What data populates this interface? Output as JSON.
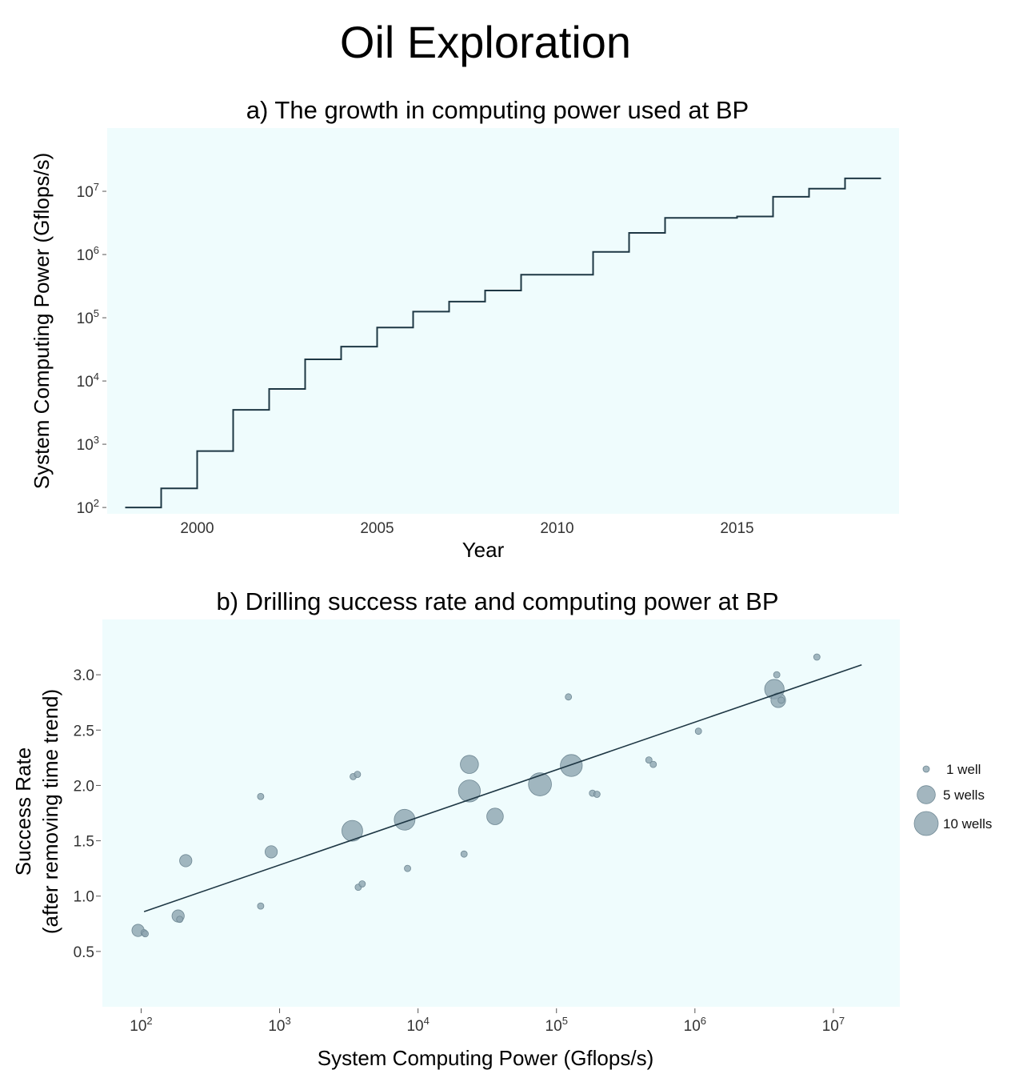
{
  "figure": {
    "title": "Oil Exploration",
    "colors": {
      "panel_bg": "#effcfd",
      "line": "#1e3744",
      "point": "#8fa6b1",
      "point_edge": "#6f8894",
      "text": "#111111"
    }
  },
  "chart_data": [
    {
      "type": "line",
      "step": true,
      "title": "a) The growth in computing power used at BP",
      "xlabel": "Year",
      "ylabel": "System Computing Power (Gflops/s)",
      "y_scale": "log10",
      "xlim": [
        1997.5,
        2019.5
      ],
      "ylim_log10": [
        1.9,
        8.0
      ],
      "xticks": [
        2000,
        2005,
        2010,
        2015
      ],
      "yticks_exp": [
        2,
        3,
        4,
        5,
        6,
        7
      ],
      "ytick_base": "10",
      "x": [
        1998,
        1999,
        2000,
        2001,
        2002,
        2003,
        2004,
        2005,
        2006,
        2007,
        2008,
        2009,
        2010,
        2011,
        2012,
        2013,
        2014,
        2015,
        2016,
        2017,
        2018,
        2019
      ],
      "y": [
        100,
        200,
        780,
        3500,
        7500,
        22000,
        35000,
        70000,
        125000,
        180000,
        270000,
        480000,
        480000,
        1100000,
        2200000,
        3800000,
        3800000,
        4000000,
        8200000,
        11000000,
        16000000,
        16000000
      ]
    },
    {
      "type": "scatter",
      "title": "b) Drilling success rate and computing power at BP",
      "xlabel": "System Computing Power (Gflops/s)",
      "ylabel": "Success Rate",
      "ylabel_sub": "(after removing time trend)",
      "x_scale": "log10",
      "xlim_log10": [
        1.72,
        7.48
      ],
      "ylim": [
        0.0,
        3.5
      ],
      "xticks_exp": [
        2,
        3,
        4,
        5,
        6,
        7
      ],
      "xtick_base": "10",
      "yticks": [
        0.5,
        1.0,
        1.5,
        2.0,
        2.5,
        3.0
      ],
      "points": [
        {
          "x": 95,
          "y": 0.69,
          "wells": 2
        },
        {
          "x": 105,
          "y": 0.67,
          "wells": 1
        },
        {
          "x": 107,
          "y": 0.66,
          "wells": 1
        },
        {
          "x": 185,
          "y": 0.82,
          "wells": 2
        },
        {
          "x": 190,
          "y": 0.79,
          "wells": 1
        },
        {
          "x": 210,
          "y": 1.32,
          "wells": 2
        },
        {
          "x": 730,
          "y": 1.9,
          "wells": 1
        },
        {
          "x": 730,
          "y": 0.91,
          "wells": 1
        },
        {
          "x": 870,
          "y": 1.4,
          "wells": 2
        },
        {
          "x": 3350,
          "y": 1.59,
          "wells": 7
        },
        {
          "x": 3400,
          "y": 2.08,
          "wells": 1
        },
        {
          "x": 3650,
          "y": 2.1,
          "wells": 1
        },
        {
          "x": 3700,
          "y": 1.08,
          "wells": 1
        },
        {
          "x": 3950,
          "y": 1.11,
          "wells": 1
        },
        {
          "x": 8000,
          "y": 1.69,
          "wells": 7
        },
        {
          "x": 8400,
          "y": 1.25,
          "wells": 1
        },
        {
          "x": 21500,
          "y": 1.38,
          "wells": 1
        },
        {
          "x": 23500,
          "y": 2.19,
          "wells": 5
        },
        {
          "x": 23500,
          "y": 1.95,
          "wells": 8
        },
        {
          "x": 36000,
          "y": 1.72,
          "wells": 4
        },
        {
          "x": 76000,
          "y": 2.01,
          "wells": 9
        },
        {
          "x": 122000,
          "y": 2.8,
          "wells": 1
        },
        {
          "x": 128000,
          "y": 2.18,
          "wells": 8
        },
        {
          "x": 182000,
          "y": 1.93,
          "wells": 1
        },
        {
          "x": 196000,
          "y": 1.92,
          "wells": 1
        },
        {
          "x": 465000,
          "y": 2.23,
          "wells": 1
        },
        {
          "x": 500000,
          "y": 2.19,
          "wells": 1
        },
        {
          "x": 1060000,
          "y": 2.49,
          "wells": 1
        },
        {
          "x": 3750000,
          "y": 2.87,
          "wells": 6
        },
        {
          "x": 3900000,
          "y": 3.0,
          "wells": 1
        },
        {
          "x": 4000000,
          "y": 2.77,
          "wells": 3
        },
        {
          "x": 4200000,
          "y": 2.77,
          "wells": 1
        },
        {
          "x": 7600000,
          "y": 3.16,
          "wells": 1
        }
      ],
      "fit_line": {
        "x": [
          105,
          16000000
        ],
        "y": [
          0.86,
          3.09
        ]
      },
      "legend": {
        "position": "right",
        "entries": [
          {
            "label": "1 well",
            "wells": 1
          },
          {
            "label": "5 wells",
            "wells": 5
          },
          {
            "label": "10 wells",
            "wells": 10
          }
        ]
      }
    }
  ]
}
